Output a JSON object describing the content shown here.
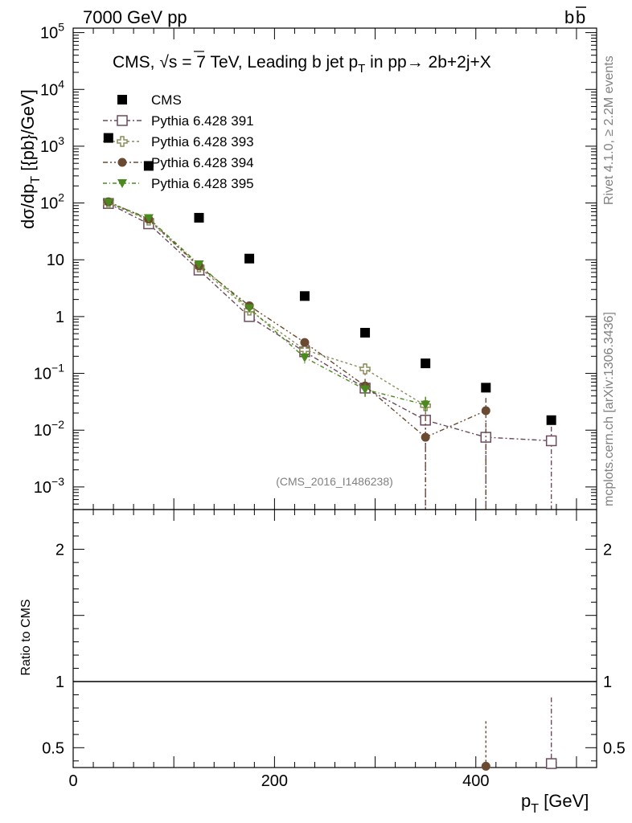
{
  "header": {
    "left": "7000 GeV pp",
    "right_main": "b",
    "right_bar": "b"
  },
  "side_text": {
    "rivet": "Rivet 4.1.0, ≥ 2.2M events",
    "mcplots": "mcplots.cern.ch [arXiv:1306.3436]"
  },
  "chart_data": [
    {
      "type": "scatter",
      "panel": "main",
      "title_parts": {
        "prefix": "CMS, ",
        "sqrt": "√",
        "s": "s",
        "mid": " = 7 TeV, Leading b jet p",
        "sub": "T",
        "suffix": " in pp→  2b+2j+X"
      },
      "ylabel": {
        "main": "dσ/dp",
        "sub": "T",
        "end": " [{pb}/GeV]"
      },
      "yscale": "log",
      "xlim": [
        0,
        520
      ],
      "ylim": [
        0.0004,
        120000
      ],
      "yticks": [
        {
          "value": 0.001,
          "base": "10",
          "exp": "−3"
        },
        {
          "value": 0.01,
          "base": "10",
          "exp": "−2"
        },
        {
          "value": 0.1,
          "base": "10",
          "exp": "−1"
        },
        {
          "value": 1,
          "base": "1",
          "exp": ""
        },
        {
          "value": 10,
          "base": "10",
          "exp": ""
        },
        {
          "value": 100,
          "base": "10",
          "exp": "2"
        },
        {
          "value": 1000,
          "base": "10",
          "exp": "3"
        },
        {
          "value": 10000,
          "base": "10",
          "exp": "4"
        },
        {
          "value": 100000,
          "base": "10",
          "exp": "5"
        }
      ],
      "watermark": "(CMS_2016_I1486238)",
      "series": [
        {
          "name": "CMS",
          "marker": "square-filled",
          "color": "#000000",
          "x": [
            35,
            75,
            125,
            175,
            230,
            290,
            350,
            410,
            475
          ],
          "y": [
            1400,
            450,
            55,
            10.5,
            2.3,
            0.52,
            0.15,
            0.056,
            0.015
          ]
        },
        {
          "name": "Pythia 6.428 391",
          "marker": "square-open",
          "color": "#6b4a5e",
          "dash": "6,3,2,3",
          "x": [
            35,
            75,
            125,
            175,
            230,
            290,
            350,
            410,
            475
          ],
          "y": [
            98,
            43,
            6.6,
            1.0,
            0.24,
            0.055,
            0.015,
            0.0075,
            0.0065
          ],
          "err_low": [
            0,
            0,
            0,
            0,
            0,
            0.01,
            0.015,
            0.0075,
            0.0065
          ],
          "err_high": [
            0,
            0,
            0,
            0,
            0,
            0.01,
            0.008,
            0.006,
            0.005
          ]
        },
        {
          "name": "Pythia 6.428 393",
          "marker": "plus-open",
          "color": "#8c8c5a",
          "dash": "3,3",
          "x": [
            35,
            75,
            125,
            175,
            230,
            290,
            350
          ],
          "y": [
            100,
            50,
            7.5,
            1.3,
            0.26,
            0.12,
            0.027
          ],
          "err_low": [
            0,
            0,
            0,
            0,
            0.04,
            0.03,
            0.01
          ],
          "err_high": [
            0,
            0,
            0,
            0,
            0.04,
            0.03,
            0.012
          ]
        },
        {
          "name": "Pythia 6.428 394",
          "marker": "circle-filled",
          "color": "#6b4a32",
          "dash": "6,3,2,3,2,3",
          "x": [
            35,
            75,
            125,
            175,
            230,
            290,
            350,
            410
          ],
          "y": [
            105,
            52,
            7.8,
            1.55,
            0.35,
            0.06,
            0.0075,
            0.022
          ],
          "err_low": [
            0,
            0,
            0,
            0,
            0.05,
            0.02,
            0.0075,
            0.022
          ],
          "err_high": [
            0,
            0,
            0,
            0,
            0.05,
            0.02,
            0.01,
            0.015
          ]
        },
        {
          "name": "Pythia 6.428 395",
          "marker": "triangle-down-filled",
          "color": "#4b8a1e",
          "dash": "5,3,1,3",
          "x": [
            35,
            75,
            125,
            175,
            230,
            290,
            350
          ],
          "y": [
            102,
            54,
            8.3,
            1.4,
            0.19,
            0.052,
            0.028
          ],
          "err_low": [
            0,
            0,
            0,
            0,
            0.04,
            0.015,
            0.01
          ],
          "err_high": [
            0,
            0,
            0,
            0,
            0.04,
            0.015,
            0.01
          ]
        }
      ]
    },
    {
      "type": "scatter",
      "panel": "ratio",
      "ylabel": "Ratio to CMS",
      "xlabel": {
        "main": "p",
        "sub": "T",
        "end": " [GeV]"
      },
      "xlim": [
        0,
        520
      ],
      "ylim": [
        0.35,
        2.3
      ],
      "xticks": [
        0,
        200,
        400
      ],
      "yticks": [
        0.5,
        1,
        2
      ],
      "reference_line": 1,
      "series": [
        {
          "name": "Pythia 6.428 394",
          "marker": "circle-filled",
          "color": "#6b4a32",
          "dash": "3,3",
          "x": [
            410
          ],
          "y": [
            0.36
          ],
          "err_low": [
            0
          ],
          "err_high": [
            0.34
          ]
        },
        {
          "name": "Pythia 6.428 391",
          "marker": "square-open",
          "color": "#6b4a5e",
          "dash": "6,3,2,3",
          "x": [
            475
          ],
          "y": [
            0.38
          ],
          "err_low": [
            0
          ],
          "err_high": [
            0.5
          ]
        }
      ]
    }
  ]
}
